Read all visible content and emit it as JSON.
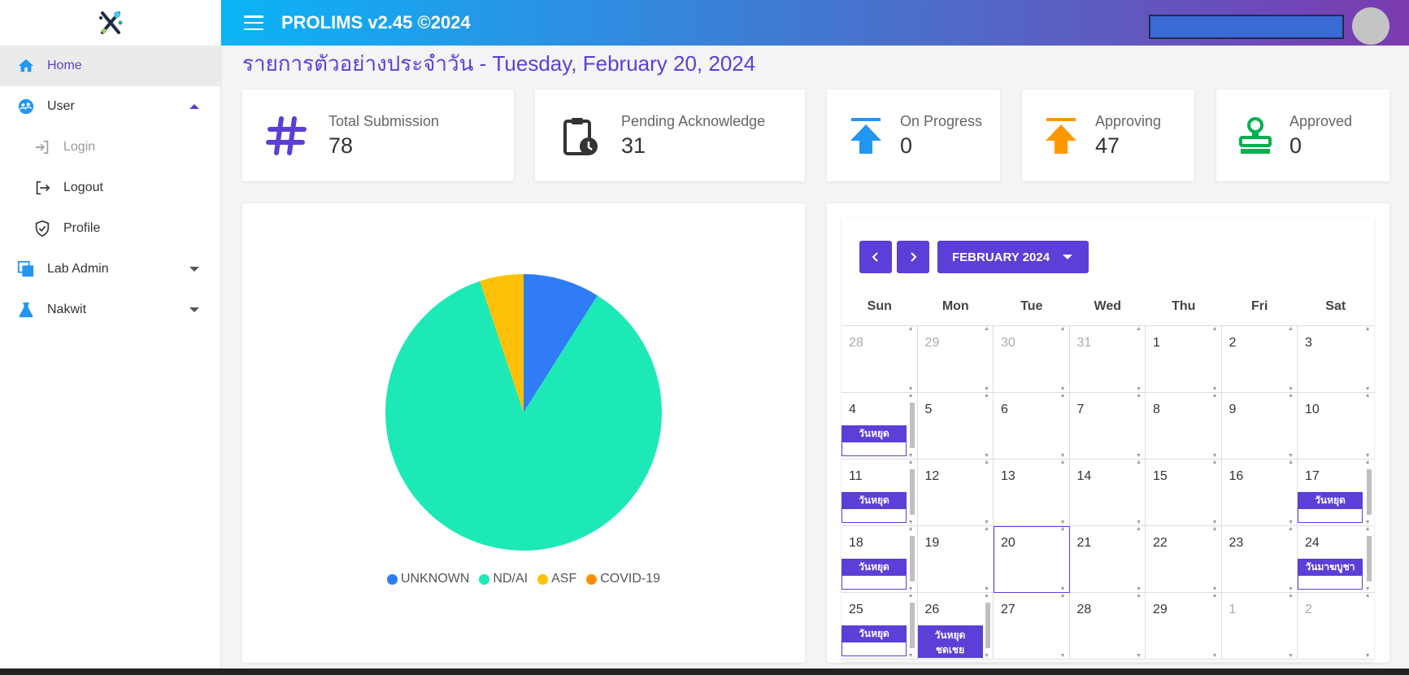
{
  "header": {
    "title": "PROLIMS v2.45 ©2024"
  },
  "sidebar": {
    "items": [
      {
        "label": "Home",
        "icon": "home-icon"
      },
      {
        "label": "User",
        "icon": "user-group-icon"
      },
      {
        "label": "Login",
        "icon": "login-icon"
      },
      {
        "label": "Logout",
        "icon": "logout-icon"
      },
      {
        "label": "Profile",
        "icon": "shield-check-icon"
      },
      {
        "label": "Lab Admin",
        "icon": "layers-icon"
      },
      {
        "label": "Nakwit",
        "icon": "flask-icon"
      }
    ]
  },
  "page": {
    "title": "รายการตัวอย่างประจำวัน - Tuesday, February 20, 2024"
  },
  "stats": [
    {
      "label": "Total Submission",
      "value": "78",
      "icon": "hash-icon",
      "color": "#5b3fd6"
    },
    {
      "label": "Pending Acknowledge",
      "value": "31",
      "icon": "clipboard-clock-icon",
      "color": "#333333"
    },
    {
      "label": "On Progress",
      "value": "0",
      "icon": "upload-arrow-icon",
      "color": "#2196f3"
    },
    {
      "label": "Approving",
      "value": "47",
      "icon": "upload-arrow-icon",
      "color": "#ff9800"
    },
    {
      "label": "Approved",
      "value": "0",
      "icon": "stamp-icon",
      "color": "#00b050"
    }
  ],
  "chart_data": {
    "type": "pie",
    "labels": [
      "UNKNOWN",
      "ND/AI",
      "ASF",
      "COVID-19"
    ],
    "values": [
      7,
      67,
      4,
      0
    ],
    "colors": [
      "#2f7cf6",
      "#1de9b6",
      "#ffc107",
      "#ff8f00"
    ]
  },
  "calendar": {
    "month_label": "FEBRUARY 2024",
    "prev_icon": "chevron-left-icon",
    "next_icon": "chevron-right-icon",
    "weekdays": [
      "Sun",
      "Mon",
      "Tue",
      "Wed",
      "Thu",
      "Fri",
      "Sat"
    ],
    "weeks": [
      [
        "28",
        "29",
        "30",
        "31",
        "1",
        "2",
        "3"
      ],
      [
        "4",
        "5",
        "6",
        "7",
        "8",
        "9",
        "10"
      ],
      [
        "11",
        "12",
        "13",
        "14",
        "15",
        "16",
        "17"
      ],
      [
        "18",
        "19",
        "20",
        "21",
        "22",
        "23",
        "24"
      ],
      [
        "25",
        "26",
        "27",
        "28",
        "29",
        "1",
        "2"
      ]
    ],
    "events": {
      "holiday": "วันหยุด",
      "makha_bucha": "วันมาฆบูชา",
      "holiday_comp_line1": "วันหยุด",
      "holiday_comp_line2": "ชดเชย"
    }
  }
}
